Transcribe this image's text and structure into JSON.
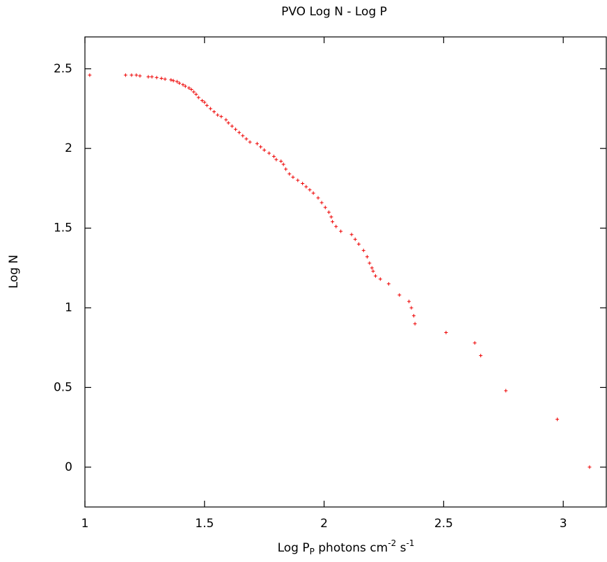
{
  "chart_data": {
    "type": "scatter",
    "title": "PVO Log N - Log P",
    "x_label_parts": [
      "Log P",
      "P",
      " photons cm",
      "-2",
      " s",
      "-1"
    ],
    "x_label_styles": [
      "normal",
      "sub",
      "normal",
      "super",
      "normal",
      "super"
    ],
    "y_label": "Log  N",
    "color": "#e00000",
    "marker": "+",
    "xlim": [
      1,
      3.18
    ],
    "ylim": [
      -0.25,
      2.7
    ],
    "xticks": [
      1,
      1.5,
      2,
      2.5,
      3
    ],
    "yticks": [
      0,
      0.5,
      1,
      1.5,
      2,
      2.5
    ],
    "x": [
      1.02,
      1.17,
      1.195,
      1.215,
      1.23,
      1.265,
      1.28,
      1.3,
      1.32,
      1.335,
      1.36,
      1.37,
      1.385,
      1.395,
      1.41,
      1.42,
      1.435,
      1.445,
      1.455,
      1.465,
      1.475,
      1.49,
      1.5,
      1.51,
      1.525,
      1.54,
      1.555,
      1.57,
      1.59,
      1.6,
      1.615,
      1.63,
      1.645,
      1.66,
      1.675,
      1.69,
      1.72,
      1.735,
      1.75,
      1.77,
      1.79,
      1.8,
      1.82,
      1.83,
      1.84,
      1.855,
      1.87,
      1.89,
      1.91,
      1.925,
      1.94,
      1.955,
      1.975,
      1.99,
      2.005,
      2.02,
      2.03,
      2.035,
      2.05,
      2.07,
      2.115,
      2.13,
      2.145,
      2.165,
      2.18,
      2.19,
      2.2,
      2.205,
      2.215,
      2.235,
      2.27,
      2.315,
      2.355,
      2.365,
      2.375,
      2.38,
      2.51,
      2.63,
      2.655,
      2.76,
      2.975,
      3.11
    ],
    "values": [
      2.46,
      2.46,
      2.46,
      2.46,
      2.455,
      2.45,
      2.45,
      2.445,
      2.44,
      2.435,
      2.43,
      2.425,
      2.42,
      2.41,
      2.4,
      2.39,
      2.38,
      2.37,
      2.355,
      2.34,
      2.32,
      2.3,
      2.29,
      2.27,
      2.25,
      2.23,
      2.21,
      2.2,
      2.18,
      2.16,
      2.14,
      2.12,
      2.1,
      2.08,
      2.06,
      2.04,
      2.03,
      2.01,
      1.99,
      1.97,
      1.95,
      1.93,
      1.92,
      1.9,
      1.87,
      1.84,
      1.82,
      1.8,
      1.78,
      1.76,
      1.74,
      1.72,
      1.69,
      1.66,
      1.63,
      1.6,
      1.57,
      1.54,
      1.51,
      1.48,
      1.46,
      1.43,
      1.4,
      1.36,
      1.32,
      1.28,
      1.25,
      1.23,
      1.2,
      1.18,
      1.15,
      1.08,
      1.04,
      1,
      0.95,
      0.9,
      0.845,
      0.78,
      0.7,
      0.48,
      0.3,
      0
    ]
  }
}
